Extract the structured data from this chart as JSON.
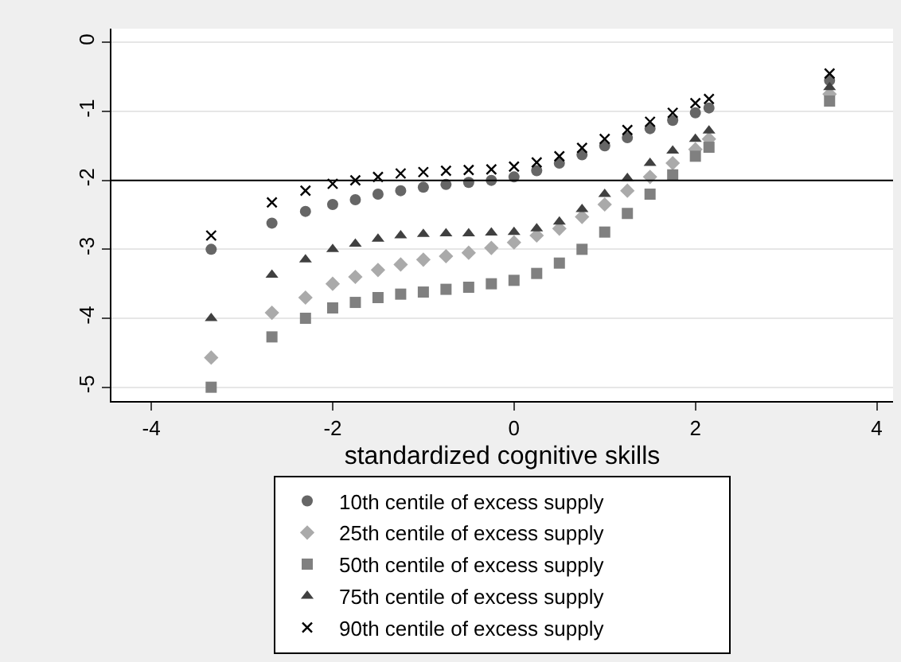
{
  "chart_data": {
    "type": "scatter",
    "xlabel": "standardized cognitive skills",
    "x": [
      -3.34,
      -2.67,
      -2.3,
      -2,
      -1.75,
      -1.5,
      -1.25,
      -1,
      -0.75,
      -0.5,
      -0.25,
      0,
      0.25,
      0.5,
      0.75,
      1,
      1.25,
      1.5,
      1.75,
      2,
      2.15,
      3.48
    ],
    "series": [
      {
        "name": "10th centile of excess supply",
        "color": "#666666",
        "marker": "circle",
        "values": [
          -3.0,
          -2.62,
          -2.45,
          -2.35,
          -2.28,
          -2.2,
          -2.15,
          -2.1,
          -2.06,
          -2.03,
          -2.0,
          -1.95,
          -1.86,
          -1.75,
          -1.63,
          -1.5,
          -1.38,
          -1.25,
          -1.13,
          -1.02,
          -0.95,
          -0.55
        ]
      },
      {
        "name": "25th centile of excess supply",
        "color": "#aaaaaa",
        "marker": "diamond",
        "values": [
          -4.57,
          -3.92,
          -3.7,
          -3.5,
          -3.4,
          -3.3,
          -3.22,
          -3.15,
          -3.1,
          -3.05,
          -2.98,
          -2.9,
          -2.8,
          -2.7,
          -2.53,
          -2.35,
          -2.15,
          -1.95,
          -1.75,
          -1.55,
          -1.4,
          -0.75
        ]
      },
      {
        "name": "50th centile of excess supply",
        "color": "#808080",
        "marker": "square",
        "values": [
          -5.0,
          -4.27,
          -4.0,
          -3.85,
          -3.77,
          -3.7,
          -3.65,
          -3.62,
          -3.58,
          -3.55,
          -3.5,
          -3.45,
          -3.35,
          -3.2,
          -3.0,
          -2.75,
          -2.48,
          -2.2,
          -1.92,
          -1.65,
          -1.52,
          -0.85
        ]
      },
      {
        "name": "75th centile of excess supply",
        "color": "#404040",
        "marker": "triangle",
        "values": [
          -4.0,
          -3.37,
          -3.15,
          -3.0,
          -2.92,
          -2.85,
          -2.8,
          -2.78,
          -2.77,
          -2.77,
          -2.76,
          -2.75,
          -2.7,
          -2.6,
          -2.42,
          -2.2,
          -1.97,
          -1.75,
          -1.57,
          -1.4,
          -1.28,
          -0.65
        ]
      },
      {
        "name": "90th centile of excess supply",
        "color": "#000000",
        "marker": "cross",
        "values": [
          -2.8,
          -2.32,
          -2.15,
          -2.05,
          -2.0,
          -1.95,
          -1.9,
          -1.88,
          -1.86,
          -1.85,
          -1.84,
          -1.8,
          -1.74,
          -1.65,
          -1.53,
          -1.4,
          -1.27,
          -1.15,
          -1.02,
          -0.88,
          -0.82,
          -0.45
        ]
      }
    ],
    "xlim": [
      -4.44,
      4.18
    ],
    "xticks": [
      -4,
      -2,
      0,
      2,
      4
    ],
    "ylim": [
      -5.2,
      0.2
    ],
    "yticks": [
      0,
      -1,
      -2,
      -3,
      -4,
      -5
    ],
    "ref_lines": [
      {
        "axis": "y",
        "value": -2,
        "color": "#000000"
      }
    ],
    "grid": "y",
    "legend": "bottom"
  }
}
